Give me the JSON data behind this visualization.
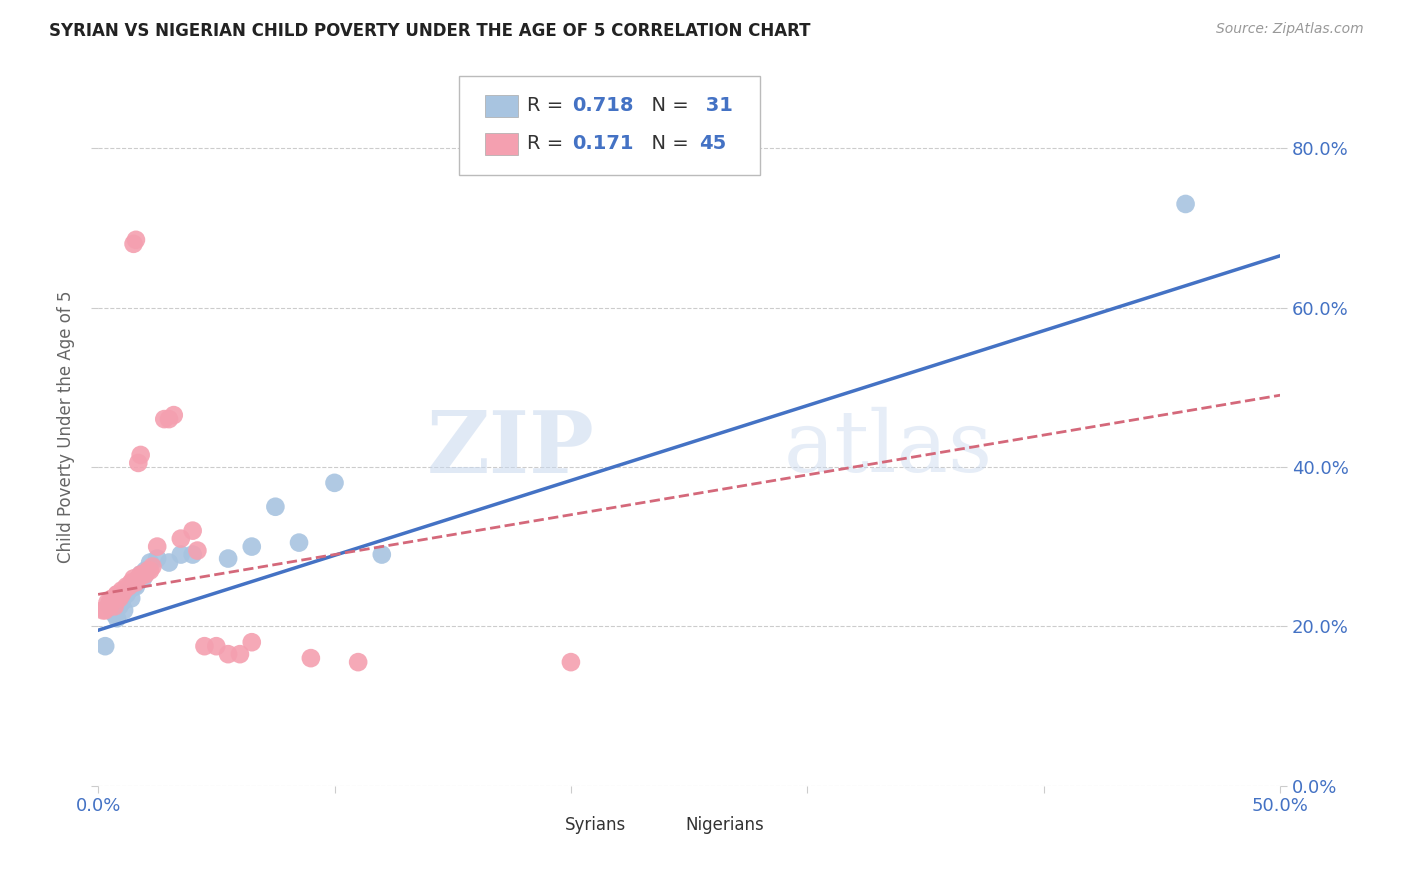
{
  "title": "SYRIAN VS NIGERIAN CHILD POVERTY UNDER THE AGE OF 5 CORRELATION CHART",
  "source": "Source: ZipAtlas.com",
  "ylabel": "Child Poverty Under the Age of 5",
  "xlim": [
    0.0,
    0.5
  ],
  "ylim": [
    -0.02,
    0.92
  ],
  "plot_ylim": [
    0.0,
    0.9
  ],
  "xticks": [
    0.0,
    0.1,
    0.2,
    0.3,
    0.4,
    0.5
  ],
  "yticks": [
    0.0,
    0.2,
    0.4,
    0.6,
    0.8
  ],
  "ytick_labels_right": [
    "0.0%",
    "20.0%",
    "40.0%",
    "60.0%",
    "80.0%"
  ],
  "xtick_labels": [
    "0.0%",
    "",
    "",
    "",
    "",
    "50.0%"
  ],
  "syrian_color": "#a8c4e0",
  "nigerian_color": "#f4a0b0",
  "syrian_line_color": "#4472c4",
  "nigerian_line_color": "#d4687a",
  "background_color": "#ffffff",
  "grid_color": "#cccccc",
  "watermark_zip": "ZIP",
  "watermark_atlas": "atlas",
  "syrian_R": 0.718,
  "syrian_N": 31,
  "nigerian_R": 0.171,
  "nigerian_N": 45,
  "syrian_scatter_x": [
    0.003,
    0.005,
    0.005,
    0.006,
    0.007,
    0.008,
    0.009,
    0.01,
    0.01,
    0.011,
    0.012,
    0.013,
    0.014,
    0.015,
    0.015,
    0.016,
    0.018,
    0.019,
    0.02,
    0.022,
    0.025,
    0.03,
    0.035,
    0.04,
    0.055,
    0.065,
    0.075,
    0.085,
    0.1,
    0.12,
    0.46
  ],
  "syrian_scatter_y": [
    0.175,
    0.225,
    0.23,
    0.22,
    0.215,
    0.21,
    0.225,
    0.23,
    0.235,
    0.22,
    0.24,
    0.245,
    0.235,
    0.25,
    0.255,
    0.25,
    0.265,
    0.26,
    0.27,
    0.28,
    0.285,
    0.28,
    0.29,
    0.29,
    0.285,
    0.3,
    0.35,
    0.305,
    0.38,
    0.29,
    0.73
  ],
  "nigerian_scatter_x": [
    0.002,
    0.003,
    0.004,
    0.005,
    0.005,
    0.006,
    0.007,
    0.008,
    0.008,
    0.009,
    0.01,
    0.01,
    0.011,
    0.012,
    0.013,
    0.014,
    0.015,
    0.015,
    0.016,
    0.017,
    0.018,
    0.019,
    0.02,
    0.021,
    0.022,
    0.023,
    0.025,
    0.028,
    0.03,
    0.032,
    0.035,
    0.04,
    0.042,
    0.045,
    0.05,
    0.055,
    0.06,
    0.065,
    0.09,
    0.11,
    0.015,
    0.016,
    0.017,
    0.018,
    0.2
  ],
  "nigerian_scatter_y": [
    0.22,
    0.22,
    0.23,
    0.225,
    0.23,
    0.235,
    0.225,
    0.24,
    0.24,
    0.235,
    0.245,
    0.24,
    0.245,
    0.25,
    0.25,
    0.255,
    0.255,
    0.26,
    0.255,
    0.26,
    0.265,
    0.265,
    0.265,
    0.27,
    0.27,
    0.275,
    0.3,
    0.46,
    0.46,
    0.465,
    0.31,
    0.32,
    0.295,
    0.175,
    0.175,
    0.165,
    0.165,
    0.18,
    0.16,
    0.155,
    0.68,
    0.685,
    0.405,
    0.415,
    0.155
  ],
  "syrian_line_x0": 0.0,
  "syrian_line_y0": 0.195,
  "syrian_line_x1": 0.5,
  "syrian_line_y1": 0.665,
  "nigerian_line_x0": 0.0,
  "nigerian_line_y0": 0.24,
  "nigerian_line_x1": 0.5,
  "nigerian_line_y1": 0.49
}
